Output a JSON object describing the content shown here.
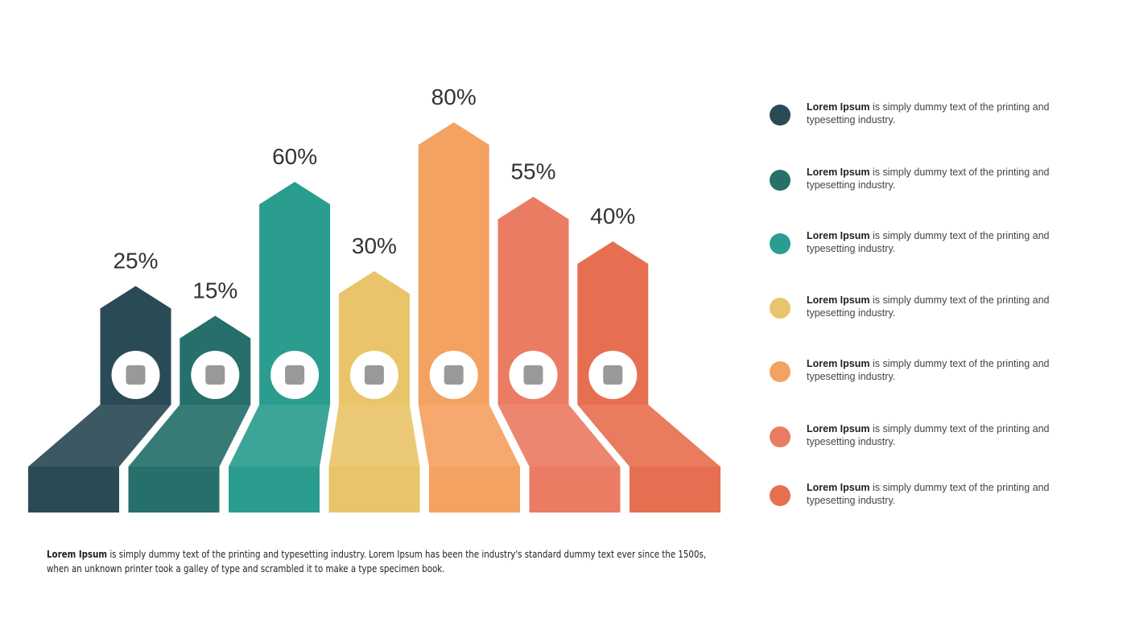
{
  "chart_data": {
    "type": "bar",
    "values": [
      25,
      15,
      60,
      30,
      80,
      55,
      40
    ],
    "value_labels": [
      "25%",
      "15%",
      "60%",
      "30%",
      "80%",
      "55%",
      "40%"
    ],
    "colors": [
      "#2a4a55",
      "#266f6b",
      "#2a9d8f",
      "#e9c46a",
      "#f4a261",
      "#eb7c64",
      "#e76f51"
    ]
  },
  "legend": [
    {
      "bold": "Lorem Ipsum",
      "text": " is simply dummy text of the printing and typesetting industry."
    },
    {
      "bold": "Lorem Ipsum",
      "text": " is simply dummy text of the printing and typesetting industry."
    },
    {
      "bold": "Lorem Ipsum",
      "text": " is simply dummy text of the printing and typesetting industry."
    },
    {
      "bold": "Lorem Ipsum",
      "text": " is simply dummy text of the printing and typesetting industry."
    },
    {
      "bold": "Lorem Ipsum",
      "text": " is simply dummy text of the printing and typesetting industry."
    },
    {
      "bold": "Lorem Ipsum",
      "text": " is simply dummy text of the printing and typesetting industry."
    },
    {
      "bold": "Lorem Ipsum",
      "text": " is simply dummy text of the printing and typesetting industry."
    }
  ],
  "footer": {
    "bold": "Lorem Ipsum",
    "text": " is simply dummy text of the printing and typesetting industry. Lorem Ipsum has been the industry's standard dummy text ever since the 1500s, when an unknown printer took a galley of type and scrambled it to make a type specimen book."
  }
}
